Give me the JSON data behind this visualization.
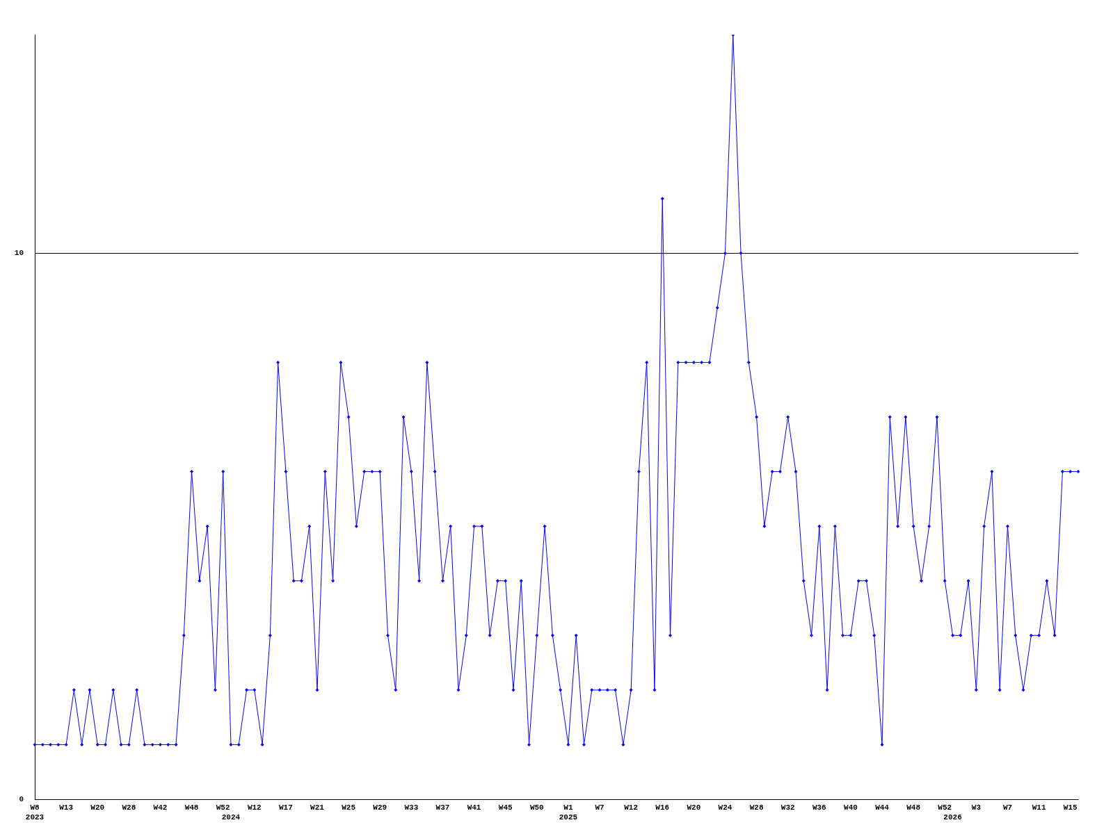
{
  "chart_data": {
    "type": "line",
    "categories": [
      "W8\n2023",
      null,
      null,
      null,
      "W13",
      null,
      null,
      null,
      "W20",
      null,
      null,
      null,
      "W28",
      null,
      null,
      null,
      "W42",
      null,
      null,
      null,
      "W48",
      null,
      null,
      null,
      "W52",
      "\n2024",
      null,
      null,
      "W12",
      null,
      null,
      null,
      "W17",
      null,
      null,
      null,
      "W21",
      null,
      null,
      null,
      "W25",
      null,
      null,
      null,
      "W29",
      null,
      null,
      null,
      "W33",
      null,
      null,
      null,
      "W37",
      null,
      null,
      null,
      "W41",
      null,
      null,
      null,
      "W45",
      null,
      null,
      null,
      "W50",
      null,
      null,
      null,
      "W1\n2025",
      null,
      null,
      null,
      "W7",
      null,
      null,
      null,
      "W12",
      null,
      null,
      null,
      "W16",
      null,
      null,
      null,
      "W20",
      null,
      null,
      null,
      "W24",
      null,
      null,
      null,
      "W28",
      null,
      null,
      null,
      "W32",
      null,
      null,
      null,
      "W36",
      null,
      null,
      null,
      "W40",
      null,
      null,
      null,
      "W44",
      null,
      null,
      null,
      "W48",
      null,
      null,
      null,
      "W52",
      "\n2026",
      null,
      null,
      "W3",
      null,
      null,
      null,
      "W7",
      null,
      null,
      null,
      "W11",
      null,
      null,
      null,
      "W15",
      null
    ],
    "values": [
      1,
      1,
      1,
      1,
      1,
      2,
      1,
      2,
      1,
      1,
      2,
      1,
      1,
      2,
      1,
      1,
      1,
      1,
      1,
      3,
      6,
      4,
      5,
      2,
      6,
      1,
      1,
      2,
      2,
      1,
      3,
      8,
      6,
      4,
      4,
      5,
      2,
      6,
      4,
      8,
      7,
      5,
      6,
      6,
      6,
      3,
      2,
      7,
      6,
      4,
      8,
      6,
      4,
      5,
      2,
      3,
      5,
      5,
      3,
      4,
      4,
      2,
      4,
      1,
      3,
      5,
      3,
      2,
      1,
      3,
      1,
      2,
      2,
      2,
      2,
      1,
      2,
      6,
      8,
      2,
      11,
      3,
      8,
      8,
      8,
      8,
      8,
      9,
      10,
      14,
      10,
      8,
      7,
      5,
      6,
      6,
      7,
      6,
      4,
      3,
      5,
      2,
      5,
      3,
      3,
      4,
      4,
      3,
      1,
      7,
      5,
      7,
      5,
      4,
      5,
      7,
      4,
      3,
      3,
      4,
      2,
      5,
      6,
      2,
      5,
      3,
      2,
      3,
      3,
      4,
      3,
      6,
      6,
      6
    ],
    "color": "#0000ff",
    "marker": "diamond",
    "ylim": [
      0,
      14
    ],
    "yticks": [
      0,
      10
    ],
    "grid": "y"
  }
}
